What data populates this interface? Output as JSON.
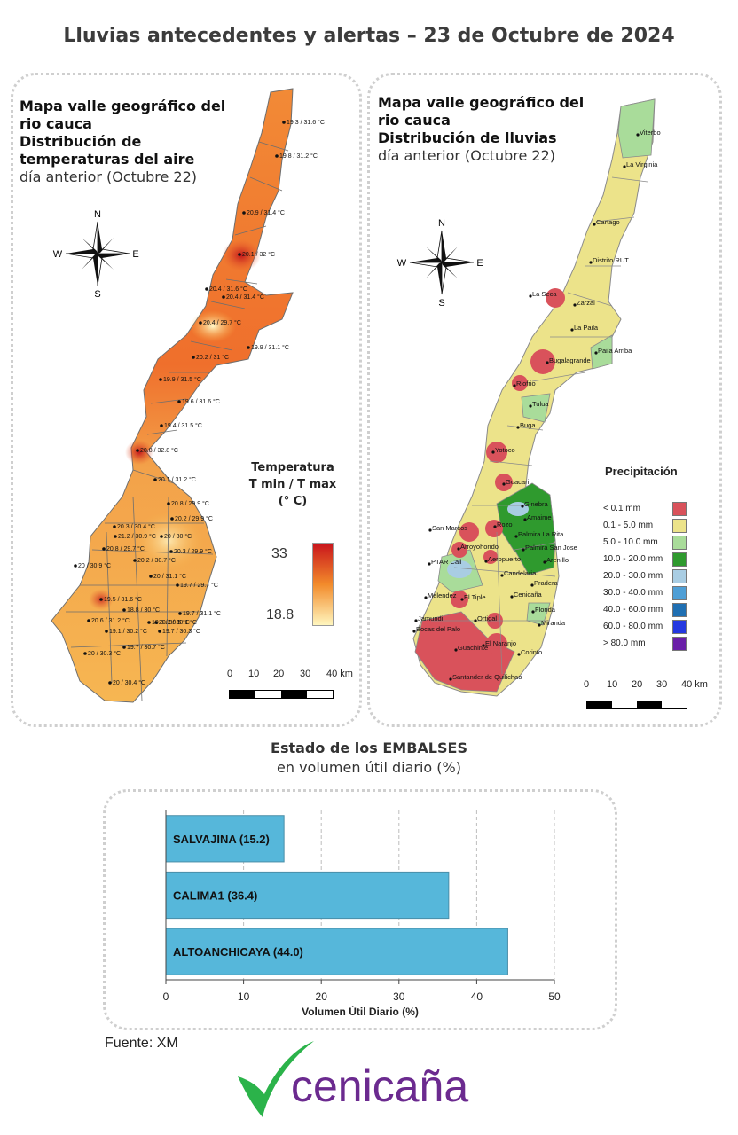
{
  "title": "Lluvias antecedentes y alertas – 23 de Octubre de 2024",
  "temp_panel": {
    "line1": "Mapa valle geográfico del",
    "line2": "rio cauca",
    "line3": "Distribución de",
    "line4": "temperaturas del aire",
    "line5": "día anterior (Octubre 22)",
    "legend_title1": "Temperatura",
    "legend_title2": "T min / T max",
    "legend_title3": "(° C)",
    "legend_max": "33",
    "legend_min": "18.8",
    "scale_labels": [
      "0",
      "10",
      "20",
      "30",
      "40 km"
    ],
    "compass": {
      "n": "N",
      "s": "S",
      "e": "E",
      "w": "W"
    },
    "stations": [
      "19.3 / 31.6 °C",
      "19.8 / 31.2 °C",
      "20.9 / 31.4 °C",
      "20.1 / 32 °C",
      "20.4 / 31.6 °C",
      "20.4 / 31.4 °C",
      "20.4 / 29.7 °C",
      "19.9 / 31.1 °C",
      "20.2 / 31 °C",
      "19.9 / 31.5 °C",
      "19.6 / 31.6 °C",
      "19.4 / 31.5 °C",
      "20.8 / 32.8 °C",
      "20.1 / 31.2 °C",
      "20.8 / 29.9 °C",
      "20.2 / 29.9 °C",
      "20.3 / 30.4 °C",
      "21.2 / 30.9 °C",
      "20 / 30 °C",
      "20.8 / 29.7 °C",
      "20.2 / 30.7 °C",
      "20.3 / 29.9 °C",
      "20 / 30.9 °C",
      "20 / 31.1 °C",
      "19.7 / 29.7 °C",
      "19.5 / 31.6 °C",
      "18.8 / 30 °C",
      "20.2 / 30.1 °C",
      "19.7 / 31.1 °C",
      "20.6 / 31.2 °C",
      "19.1 / 30.2 °C",
      "19.8 / 30.5 °C",
      "19.7 / 30.3 °C",
      "19.7 / 30.7 °C",
      "20 / 30.3 °C",
      "20 / 30.4 °C"
    ]
  },
  "rain_panel": {
    "line1": "Mapa valle geográfico del",
    "line2": "rio cauca",
    "line3": "Distribución de lluvias",
    "line4": "día anterior (Octubre 22)",
    "legend_title": "Precipitación",
    "legend": [
      {
        "label": "< 0.1 mm",
        "color": "#d9525b"
      },
      {
        "label": "0.1 - 5.0 mm",
        "color": "#ece38a"
      },
      {
        "label": "5.0 - 10.0 mm",
        "color": "#a9dc9a"
      },
      {
        "label": "10.0 - 20.0 mm",
        "color": "#2f9a2e"
      },
      {
        "label": "20.0 - 30.0 mm",
        "color": "#a9cde3"
      },
      {
        "label": "30.0 - 40.0 mm",
        "color": "#4f9fd6"
      },
      {
        "label": "40.0 - 60.0 mm",
        "color": "#1f6fb2"
      },
      {
        "label": "60.0 - 80.0 mm",
        "color": "#2438e0"
      },
      {
        "label": "> 80.0 mm",
        "color": "#6a1fa8"
      }
    ],
    "scale_labels": [
      "0",
      "10",
      "20",
      "30",
      "40 km"
    ],
    "compass": {
      "n": "N",
      "s": "S",
      "e": "E",
      "w": "W"
    },
    "places": [
      "Viterbo",
      "La Virginia",
      "Cartago",
      "Distrito RUT",
      "La Seca",
      "Zarzal",
      "La Paila",
      "Paila Arriba",
      "Bugalagrande",
      "Riofrio",
      "Tulua",
      "Buga",
      "Yotoco",
      "Guacari",
      "Ginebra",
      "Amaime",
      "San Marcos",
      "Rozo",
      "Palmira La Rita",
      "Palmira San Jose",
      "Arroyohondo",
      "Aeropuerto",
      "Arenillo",
      "PTAR Cali",
      "Candelaria",
      "Pradera",
      "Cenicaña",
      "Melendez",
      "El Tiple",
      "Florida",
      "Ortigal",
      "Miranda",
      "Jamundi",
      "Bocas del Palo",
      "El Naranjo",
      "Guachinte",
      "Corinto",
      "Santander de Quilichao"
    ]
  },
  "reservoirs": {
    "title": "Estado de los EMBALSES",
    "subtitle": "en volumen útil diario (%)",
    "source": "Fuente: XM",
    "logo_text": "cenicaña"
  },
  "chart_data": {
    "type": "bar",
    "orientation": "horizontal",
    "categories": [
      "SALVAJINA",
      "CALIMA1",
      "ALTOANCHICAYA"
    ],
    "values": [
      15.2,
      36.4,
      44.0
    ],
    "bar_labels": [
      "SALVAJINA (15.2)",
      "CALIMA1 (36.4)",
      "ALTOANCHICAYA (44.0)"
    ],
    "xlabel": "Volumen Útil Diario (%)",
    "xlim": [
      0,
      50
    ],
    "xticks": [
      "0",
      "10",
      "20",
      "30",
      "40",
      "50"
    ],
    "bar_color": "#56b7da",
    "grid": "x-dashed"
  }
}
